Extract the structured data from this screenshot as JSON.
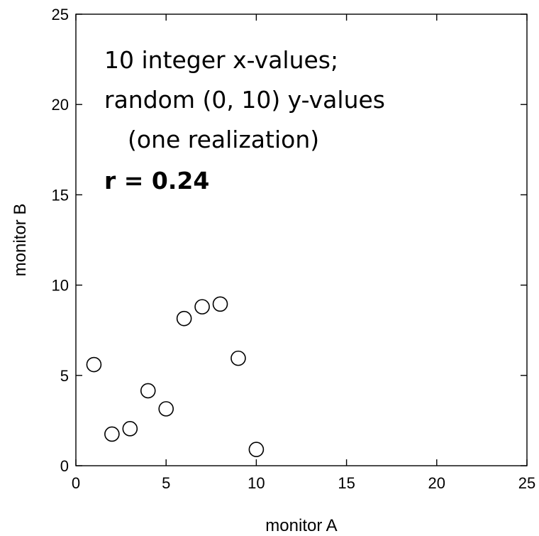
{
  "chart_data": {
    "type": "scatter",
    "xlabel": "monitor A",
    "ylabel": "monitor B",
    "xlim": [
      0,
      25
    ],
    "ylim": [
      0,
      25
    ],
    "xticks": [
      "0",
      "5",
      "10",
      "15",
      "20",
      "25"
    ],
    "yticks": [
      "0",
      "5",
      "10",
      "15",
      "20",
      "25"
    ],
    "grid": false,
    "marker": "open-circle",
    "points": [
      {
        "x": 1,
        "y": 5.6
      },
      {
        "x": 2,
        "y": 1.75
      },
      {
        "x": 3,
        "y": 2.05
      },
      {
        "x": 4,
        "y": 4.15
      },
      {
        "x": 5,
        "y": 3.15
      },
      {
        "x": 6,
        "y": 8.15
      },
      {
        "x": 7,
        "y": 8.8
      },
      {
        "x": 8,
        "y": 8.95
      },
      {
        "x": 9,
        "y": 5.95
      },
      {
        "x": 10,
        "y": 0.9
      }
    ],
    "annotation": {
      "lines": [
        "10 integer x-values;",
        "random (0, 10) y-values",
        "(one realization)"
      ],
      "stat": "r = 0.24"
    }
  }
}
